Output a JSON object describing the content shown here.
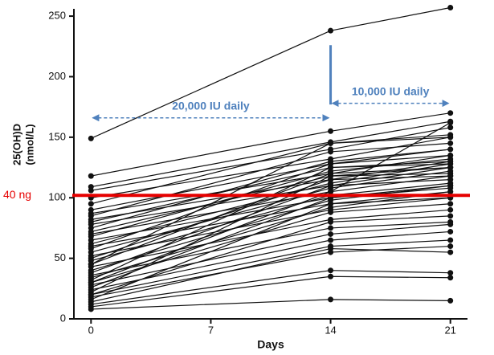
{
  "chart_data": {
    "type": "line",
    "x_label": "Days",
    "y_label": [
      "25(OH)D",
      "(nmol/L)"
    ],
    "x": [
      0,
      14,
      21
    ],
    "xlim": [
      -1,
      22
    ],
    "xticks": [
      0,
      7,
      14,
      21
    ],
    "ylim": [
      0,
      260
    ],
    "yticks": [
      0,
      50,
      100,
      150,
      200,
      250
    ],
    "color": "#111111",
    "series": [
      {
        "values": [
          149,
          238,
          257
        ]
      },
      {
        "values": [
          118,
          155,
          170
        ]
      },
      {
        "values": [
          109,
          146,
          163
        ]
      },
      {
        "values": [
          106,
          140,
          158
        ]
      },
      {
        "values": [
          100,
          132,
          150
        ]
      },
      {
        "values": [
          95,
          145,
          152
        ]
      },
      {
        "values": [
          90,
          128,
          140
        ]
      },
      {
        "values": [
          87,
          120,
          135
        ]
      },
      {
        "values": [
          85,
          138,
          145
        ]
      },
      {
        "values": [
          82,
          115,
          130
        ]
      },
      {
        "values": [
          80,
          125,
          128
        ]
      },
      {
        "values": [
          78,
          110,
          125
        ]
      },
      {
        "values": [
          75,
          130,
          140
        ]
      },
      {
        "values": [
          72,
          118,
          120
        ]
      },
      {
        "values": [
          70,
          105,
          118
        ]
      },
      {
        "values": [
          68,
          122,
          132
        ]
      },
      {
        "values": [
          65,
          100,
          110
        ]
      },
      {
        "values": [
          62,
          112,
          128
        ]
      },
      {
        "values": [
          60,
          95,
          105
        ]
      },
      {
        "values": [
          58,
          128,
          135
        ]
      },
      {
        "values": [
          55,
          108,
          122
        ]
      },
      {
        "values": [
          52,
          90,
          100
        ]
      },
      {
        "values": [
          50,
          115,
          118
        ]
      },
      {
        "values": [
          48,
          102,
          112
        ]
      },
      {
        "values": [
          45,
          120,
          125
        ]
      },
      {
        "values": [
          43,
          82,
          90
        ]
      },
      {
        "values": [
          40,
          98,
          110
        ]
      },
      {
        "values": [
          38,
          110,
          115
        ]
      },
      {
        "values": [
          36,
          75,
          80
        ]
      },
      {
        "values": [
          34,
          92,
          105
        ]
      },
      {
        "values": [
          32,
          125,
          130
        ]
      },
      {
        "values": [
          30,
          88,
          95
        ]
      },
      {
        "values": [
          28,
          70,
          78
        ]
      },
      {
        "values": [
          26,
          100,
          108
        ]
      },
      {
        "values": [
          24,
          65,
          72
        ]
      },
      {
        "values": [
          22,
          118,
          125
        ]
      },
      {
        "values": [
          20,
          80,
          85
        ]
      },
      {
        "values": [
          18,
          55,
          60
        ]
      },
      {
        "values": [
          16,
          95,
          100
        ]
      },
      {
        "values": [
          14,
          58,
          55
        ]
      },
      {
        "values": [
          12,
          40,
          38
        ]
      },
      {
        "values": [
          10,
          35,
          34
        ]
      },
      {
        "values": [
          8,
          16,
          15
        ]
      },
      {
        "values": [
          20,
          60,
          65
        ]
      },
      {
        "values": [
          30,
          105,
          162
        ]
      },
      {
        "values": [
          45,
          145,
          150
        ]
      }
    ],
    "reference_line": {
      "label": "40 ng",
      "value": 102,
      "color": "#e60000"
    },
    "annotation_color": "#4f81bd",
    "annotations": [
      {
        "text": "20,000 IU daily",
        "from": 0,
        "to": 14,
        "y": 166
      },
      {
        "text": "10,000 IU daily",
        "from": 14,
        "to": 21,
        "y": 178
      }
    ],
    "marker_line": {
      "x": 14,
      "from": 177,
      "to": 226
    }
  }
}
